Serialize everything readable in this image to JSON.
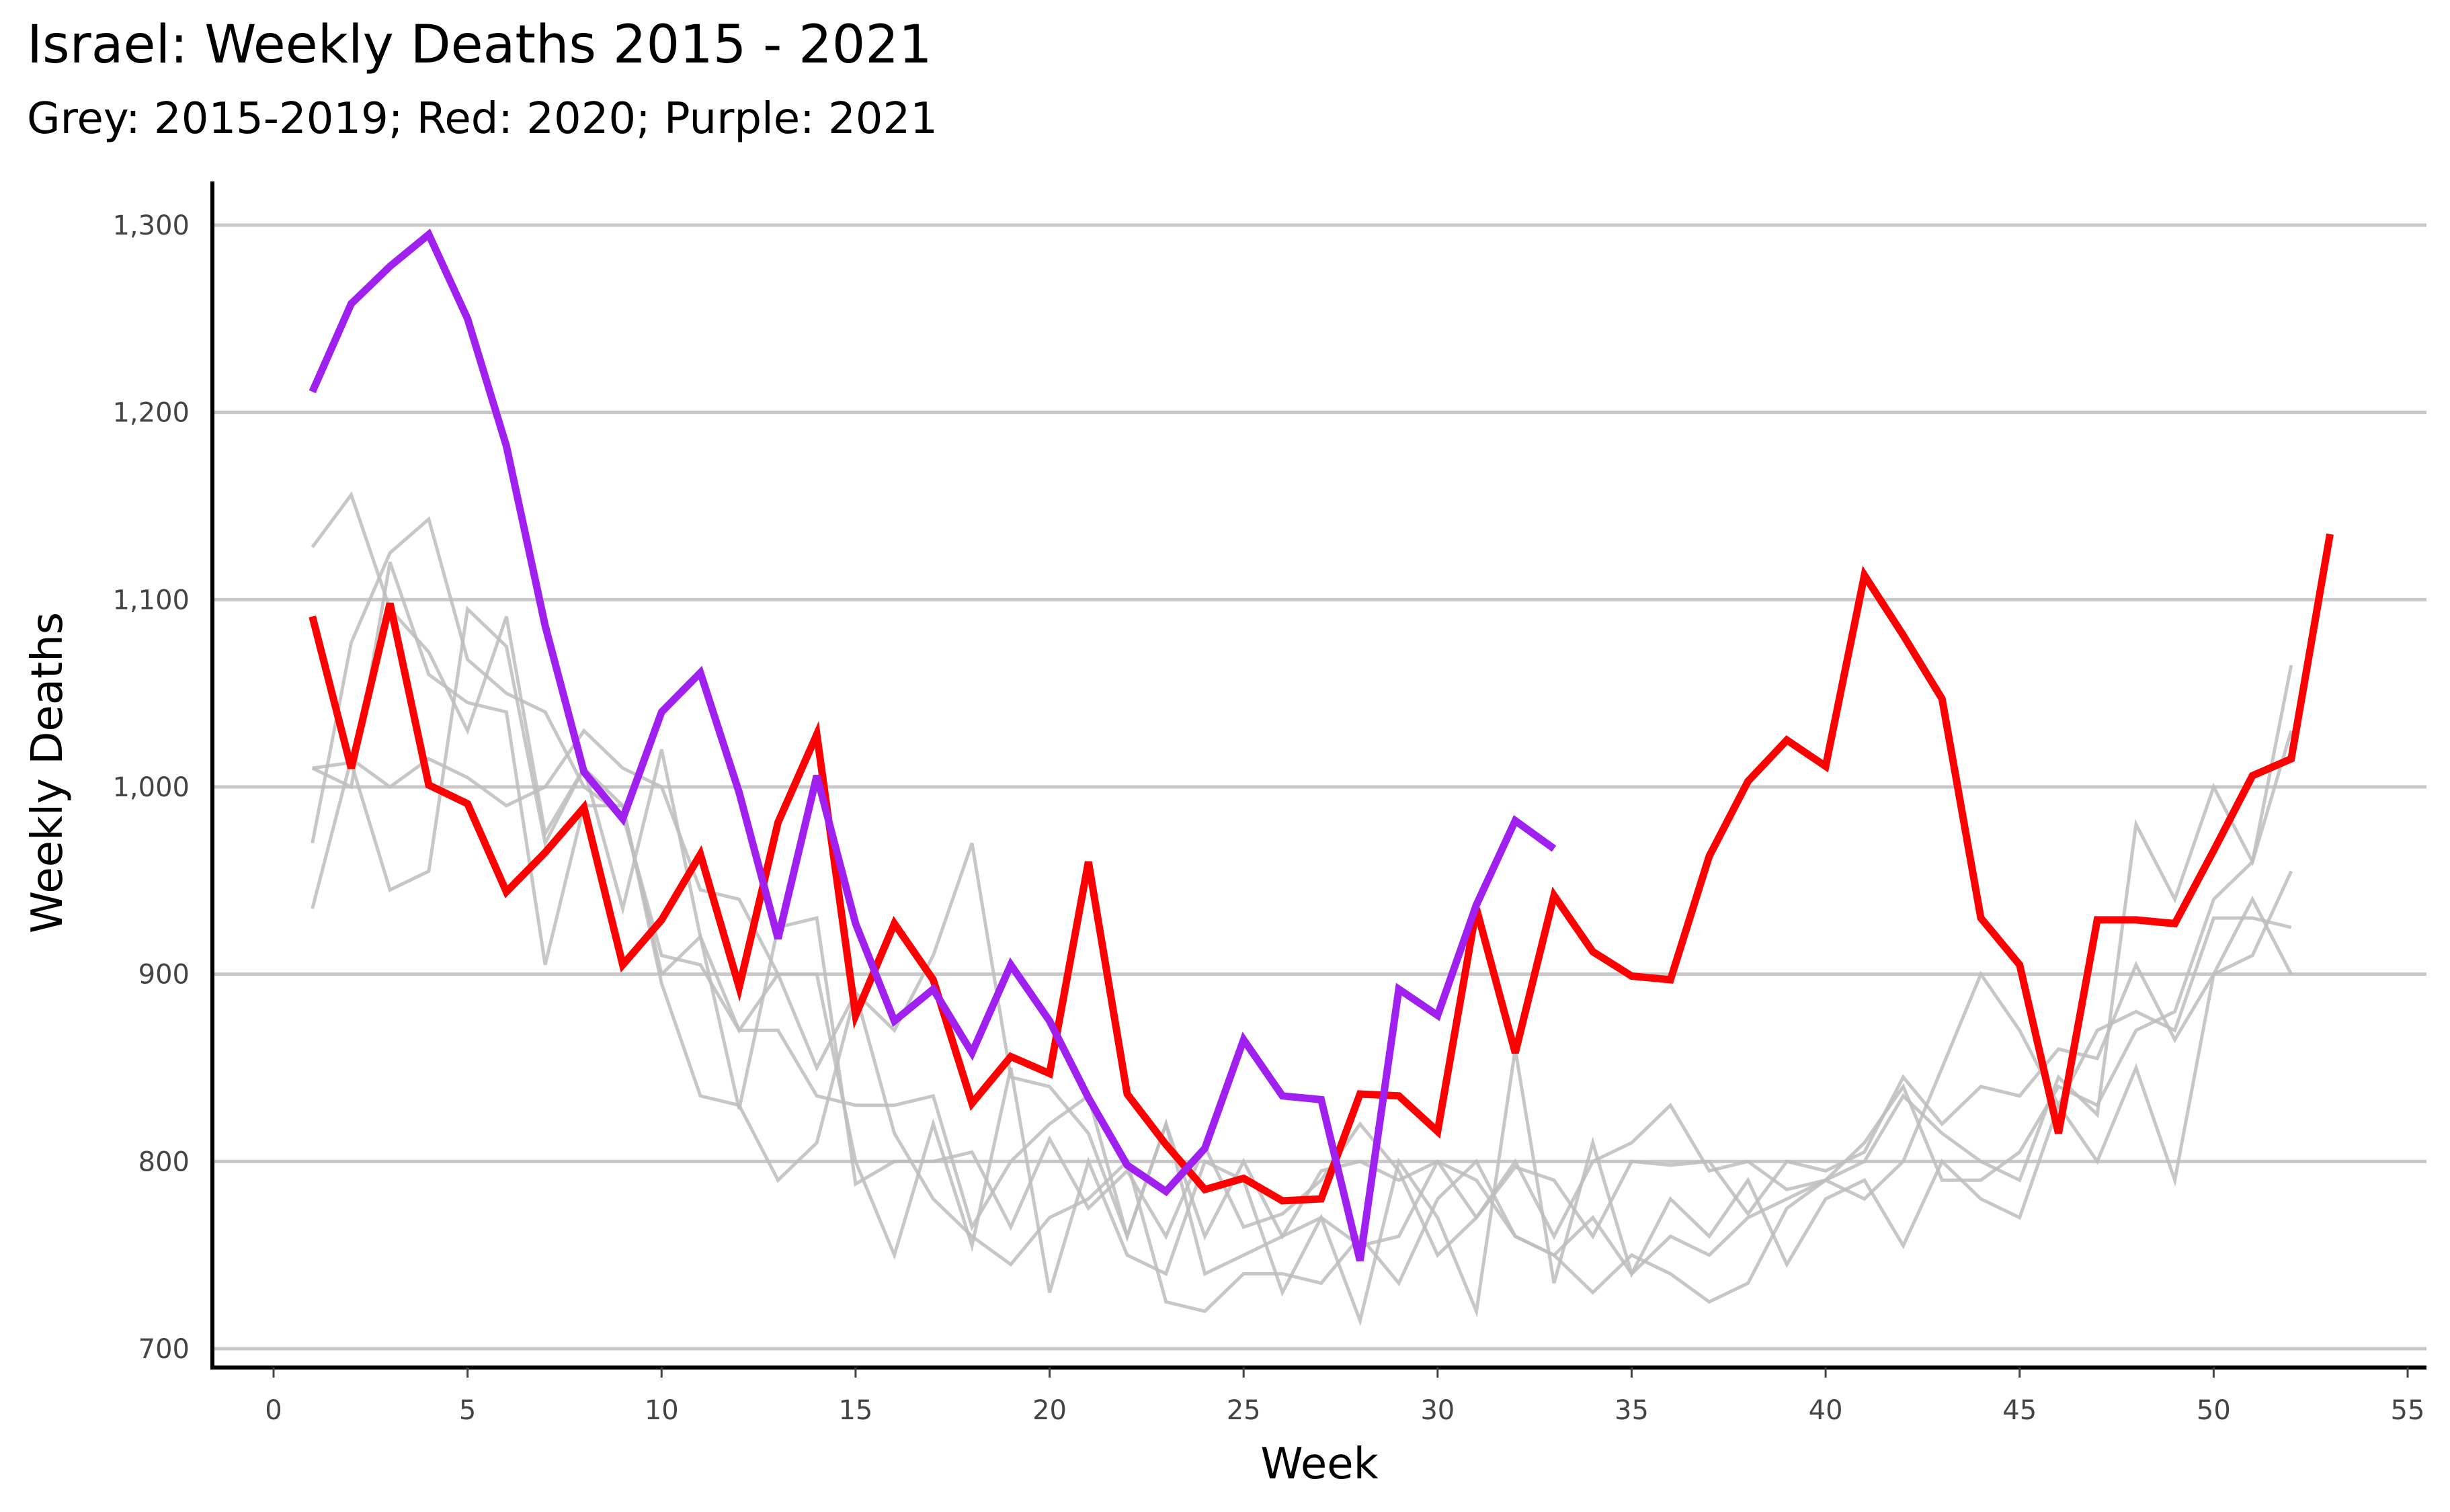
{
  "chart_data": {
    "type": "line",
    "title": "Israel: Weekly Deaths 2015 - 2021",
    "subtitle": "Grey: 2015-2019; Red: 2020; Purple: 2021",
    "xlabel": "Week",
    "ylabel": "Weekly Deaths",
    "xlim": [
      0,
      55
    ],
    "ylim": [
      700,
      1300
    ],
    "xticks": [
      0,
      5,
      10,
      15,
      20,
      25,
      30,
      35,
      40,
      45,
      50,
      55
    ],
    "yticks": [
      700,
      800,
      900,
      1000,
      1100,
      1200,
      1300
    ],
    "ytick_labels": [
      "700",
      "800",
      "900",
      "1,000",
      "1,100",
      "1,200",
      "1,300"
    ],
    "grid": "horizontal",
    "colors": {
      "grey": "#bdbdbd",
      "red": "#ff0000",
      "purple": "#a020f0",
      "grid": "#c8c8c8"
    },
    "series": [
      {
        "color": "grey",
        "x": [
          1,
          2,
          3,
          4,
          5,
          6,
          7,
          8,
          9,
          10,
          11,
          12,
          13,
          14,
          15,
          16,
          17,
          18,
          19,
          20,
          21,
          22,
          23,
          24,
          25,
          26,
          27,
          28,
          29,
          30,
          31,
          32,
          33,
          34,
          35,
          36,
          37,
          38,
          39,
          40,
          41,
          42,
          43,
          44,
          45,
          46,
          47,
          48,
          49,
          50,
          51,
          52
        ],
        "values": [
          1128,
          1156,
          1095,
          1072,
          1030,
          1091,
          975,
          1010,
          990,
          895,
          835,
          830,
          790,
          810,
          890,
          815,
          780,
          760,
          745,
          770,
          780,
          800,
          725,
          720,
          740,
          740,
          735,
          760,
          735,
          780,
          800,
          760,
          750,
          730,
          750,
          740,
          725,
          735,
          775,
          790,
          810,
          840,
          790,
          790,
          805,
          840,
          830,
          870,
          880,
          940,
          960,
          1065
        ]
      },
      {
        "color": "grey",
        "x": [
          1,
          2,
          3,
          4,
          5,
          6,
          7,
          8,
          9,
          10,
          11,
          12,
          13,
          14,
          15,
          16,
          17,
          18,
          19,
          20,
          21,
          22,
          23,
          24,
          25,
          26,
          27,
          28,
          29,
          30,
          31,
          32,
          33,
          34,
          35,
          36,
          37,
          38,
          39,
          40,
          41,
          42,
          43,
          44,
          45,
          46,
          47,
          48,
          49,
          50,
          51,
          52
        ],
        "values": [
          970,
          1077,
          1125,
          1143,
          1068,
          1050,
          1040,
          1000,
          985,
          910,
          905,
          870,
          870,
          835,
          830,
          830,
          835,
          765,
          800,
          820,
          835,
          760,
          820,
          740,
          750,
          760,
          770,
          755,
          760,
          800,
          790,
          760,
          750,
          770,
          740,
          760,
          750,
          770,
          780,
          790,
          800,
          835,
          815,
          800,
          790,
          845,
          825,
          980,
          940,
          1000,
          960,
          1030
        ]
      },
      {
        "color": "grey",
        "x": [
          1,
          2,
          3,
          4,
          5,
          6,
          7,
          8,
          9,
          10,
          11,
          12,
          13,
          14,
          15,
          16,
          17,
          18,
          19,
          20,
          21,
          22,
          23,
          24,
          25,
          26,
          27,
          28,
          29,
          30,
          31,
          32,
          33,
          34,
          35,
          36,
          37,
          38,
          39,
          40,
          41,
          42,
          43,
          44,
          45,
          46,
          47,
          48,
          49,
          50,
          51,
          52
        ],
        "values": [
          1010,
          1013,
          945,
          955,
          1095,
          1075,
          970,
          1010,
          935,
          1020,
          920,
          828,
          925,
          930,
          788,
          800,
          800,
          805,
          765,
          812,
          775,
          795,
          760,
          808,
          765,
          772,
          790,
          820,
          795,
          750,
          770,
          797,
          790,
          760,
          800,
          798,
          800,
          772,
          800,
          795,
          805,
          845,
          820,
          840,
          835,
          860,
          855,
          905,
          865,
          900,
          940,
          900
        ]
      },
      {
        "color": "grey",
        "x": [
          1,
          2,
          3,
          4,
          5,
          6,
          7,
          8,
          9,
          10,
          11,
          12,
          13,
          14,
          15,
          16,
          17,
          18,
          19,
          20,
          21,
          22,
          23,
          24,
          25,
          26,
          27,
          28,
          29,
          30,
          31,
          32,
          33,
          34,
          35,
          36,
          37,
          38,
          39,
          40,
          41,
          42,
          43,
          44,
          45,
          46,
          47,
          48,
          49,
          50,
          51,
          52
        ],
        "values": [
          935,
          1015,
          1000,
          1015,
          1005,
          990,
          1000,
          1030,
          1010,
          1000,
          945,
          940,
          900,
          850,
          890,
          870,
          910,
          970,
          845,
          840,
          815,
          760,
          820,
          760,
          800,
          760,
          795,
          800,
          790,
          800,
          770,
          800,
          760,
          800,
          810,
          830,
          795,
          800,
          785,
          790,
          780,
          800,
          850,
          900,
          870,
          830,
          870,
          880,
          870,
          930,
          930,
          925
        ]
      },
      {
        "color": "grey",
        "x": [
          1,
          2,
          3,
          4,
          5,
          6,
          7,
          8,
          9,
          10,
          11,
          12,
          13,
          14,
          15,
          16,
          17,
          18,
          19,
          20,
          21,
          22,
          23,
          24,
          25,
          26,
          27,
          28,
          29,
          30,
          31,
          32,
          33,
          34,
          35,
          36,
          37,
          38,
          39,
          40,
          41,
          42,
          43,
          44,
          45,
          46,
          47,
          48,
          49,
          50,
          51,
          52
        ],
        "values": [
          1010,
          1000,
          1120,
          1060,
          1045,
          1040,
          905,
          990,
          990,
          900,
          920,
          870,
          900,
          900,
          800,
          750,
          820,
          755,
          850,
          730,
          800,
          750,
          740,
          800,
          790,
          730,
          770,
          715,
          800,
          770,
          720,
          860,
          735,
          810,
          740,
          780,
          760,
          790,
          745,
          780,
          790,
          755,
          800,
          780,
          770,
          830,
          800,
          850,
          790,
          900,
          910,
          955
        ]
      },
      {
        "color": "red",
        "name": "2020",
        "x": [
          1,
          2,
          3,
          4,
          5,
          6,
          7,
          8,
          9,
          10,
          11,
          12,
          13,
          14,
          15,
          16,
          17,
          18,
          19,
          20,
          21,
          22,
          23,
          24,
          25,
          26,
          27,
          28,
          29,
          30,
          31,
          32,
          33,
          34,
          35,
          36,
          37,
          38,
          39,
          40,
          41,
          42,
          43,
          44,
          45,
          46,
          47,
          48,
          49,
          50,
          51,
          52,
          53
        ],
        "values": [
          1091,
          1010,
          1098,
          1001,
          991,
          944,
          965,
          989,
          905,
          929,
          964,
          893,
          981,
          1028,
          878,
          927,
          897,
          831,
          856,
          847,
          960,
          836,
          809,
          785,
          791,
          779,
          780,
          836,
          835,
          816,
          935,
          858,
          942,
          912,
          899,
          897,
          963,
          1003,
          1025,
          1011,
          1113,
          1081,
          1047,
          930,
          905,
          815,
          929,
          929,
          927,
          966,
          1006,
          1015,
          1135
        ]
      },
      {
        "color": "purple",
        "name": "2021",
        "x": [
          1,
          2,
          3,
          4,
          5,
          6,
          7,
          8,
          9,
          10,
          11,
          12,
          13,
          14,
          15,
          16,
          17,
          18,
          19,
          20,
          21,
          22,
          23,
          24,
          25,
          26,
          27,
          28,
          29,
          30,
          31,
          32,
          33
        ],
        "values": [
          1211,
          1258,
          1278,
          1295,
          1250,
          1182,
          1086,
          1008,
          983,
          1040,
          1061,
          997,
          919,
          1006,
          927,
          875,
          892,
          858,
          905,
          875,
          834,
          798,
          784,
          807,
          865,
          835,
          833,
          747,
          892,
          878,
          937,
          982,
          967
        ]
      }
    ]
  }
}
